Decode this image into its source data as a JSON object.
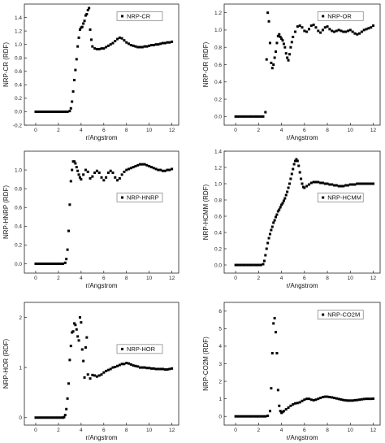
{
  "chart_data": [
    {
      "type": "scatter",
      "xlabel": "r/Angstrom",
      "ylabel": "NRP-CR (RDF)",
      "legend": "NRP-CR",
      "legend_position": "top-right",
      "xlim": [
        -1,
        12.6
      ],
      "ylim": [
        -0.2,
        1.6
      ],
      "xticks": [
        "0",
        "2",
        "4",
        "6",
        "8",
        "10",
        "12"
      ],
      "yticks": [
        "-0.2",
        "0.0",
        "0.2",
        "0.4",
        "0.6",
        "0.8",
        "1.0",
        "1.2",
        "1.4"
      ],
      "x": [
        0,
        0.2,
        0.4,
        0.6,
        0.8,
        1.0,
        1.2,
        1.4,
        1.6,
        1.8,
        2.0,
        2.2,
        2.4,
        2.6,
        2.8,
        3.0,
        3.1,
        3.2,
        3.3,
        3.4,
        3.5,
        3.6,
        3.7,
        3.8,
        3.9,
        4.0,
        4.1,
        4.2,
        4.3,
        4.4,
        4.5,
        4.6,
        4.7,
        4.8,
        4.9,
        5.0,
        5.2,
        5.4,
        5.6,
        5.8,
        6.0,
        6.2,
        6.4,
        6.6,
        6.8,
        7.0,
        7.2,
        7.4,
        7.6,
        7.8,
        8.0,
        8.2,
        8.4,
        8.6,
        8.8,
        9.0,
        9.2,
        9.4,
        9.6,
        9.8,
        10.0,
        10.2,
        10.4,
        10.6,
        10.8,
        11.0,
        11.2,
        11.4,
        11.6,
        11.8,
        12.0
      ],
      "y": [
        0,
        0,
        0,
        0,
        0,
        0,
        0,
        0,
        0,
        0,
        0,
        0,
        0,
        0,
        0,
        0.01,
        0.05,
        0.15,
        0.3,
        0.47,
        0.62,
        0.78,
        0.97,
        1.1,
        1.22,
        1.25,
        1.26,
        1.31,
        1.35,
        1.43,
        1.45,
        1.51,
        1.54,
        1.22,
        1.07,
        0.97,
        0.94,
        0.93,
        0.93,
        0.94,
        0.94,
        0.96,
        0.98,
        1.0,
        1.02,
        1.05,
        1.08,
        1.1,
        1.09,
        1.06,
        1.03,
        1.01,
        0.99,
        0.98,
        0.97,
        0.96,
        0.96,
        0.96,
        0.97,
        0.97,
        0.98,
        0.99,
        0.99,
        1.0,
        1.0,
        1.01,
        1.02,
        1.02,
        1.03,
        1.03,
        1.04
      ]
    },
    {
      "type": "scatter",
      "xlabel": "r/Angstrom",
      "ylabel": "NRP-OR (RDF)",
      "legend": "NRP-OR",
      "legend_position": "top-right",
      "xlim": [
        -1,
        12.6
      ],
      "ylim": [
        -0.1,
        1.3
      ],
      "xticks": [
        "0",
        "2",
        "4",
        "6",
        "8",
        "10",
        "12"
      ],
      "yticks": [
        "0.0",
        "0.2",
        "0.4",
        "0.6",
        "0.8",
        "1.0",
        "1.2"
      ],
      "x": [
        0,
        0.2,
        0.4,
        0.6,
        0.8,
        1.0,
        1.2,
        1.4,
        1.6,
        1.8,
        2.0,
        2.2,
        2.4,
        2.6,
        2.7,
        2.8,
        2.9,
        3.0,
        3.1,
        3.2,
        3.3,
        3.4,
        3.5,
        3.6,
        3.7,
        3.8,
        3.9,
        4.0,
        4.1,
        4.2,
        4.3,
        4.4,
        4.5,
        4.6,
        4.7,
        4.8,
        4.9,
        5.0,
        5.2,
        5.4,
        5.6,
        5.8,
        6.0,
        6.2,
        6.4,
        6.6,
        6.8,
        7.0,
        7.2,
        7.4,
        7.6,
        7.8,
        8.0,
        8.2,
        8.4,
        8.6,
        8.8,
        9.0,
        9.2,
        9.4,
        9.6,
        9.8,
        10.0,
        10.2,
        10.4,
        10.6,
        10.8,
        11.0,
        11.2,
        11.4,
        11.6,
        11.8,
        12.0
      ],
      "y": [
        0,
        0,
        0,
        0,
        0,
        0,
        0,
        0,
        0,
        0,
        0,
        0,
        0,
        0.05,
        0.66,
        1.2,
        1.1,
        0.85,
        0.62,
        0.56,
        0.6,
        0.68,
        0.75,
        0.85,
        0.93,
        0.95,
        0.92,
        0.9,
        0.88,
        0.84,
        0.8,
        0.73,
        0.68,
        0.65,
        0.72,
        0.8,
        0.86,
        0.92,
        0.98,
        1.04,
        1.05,
        1.03,
        0.99,
        0.98,
        1.01,
        1.05,
        1.06,
        1.03,
        0.99,
        0.97,
        1.0,
        1.03,
        1.04,
        1.01,
        0.99,
        0.98,
        0.99,
        1.0,
        0.99,
        0.98,
        0.98,
        0.99,
        1.0,
        0.98,
        0.96,
        0.95,
        0.96,
        0.98,
        1.0,
        1.01,
        1.02,
        1.03,
        1.05
      ]
    },
    {
      "type": "scatter",
      "xlabel": "r/Angstrom",
      "ylabel": "NRP-HNRP (RDF)",
      "legend": "NRP-HNRP",
      "legend_position": "center-right",
      "xlim": [
        -1,
        12.6
      ],
      "ylim": [
        -0.1,
        1.2
      ],
      "xticks": [
        "0",
        "2",
        "4",
        "6",
        "8",
        "10",
        "12"
      ],
      "yticks": [
        "0.0",
        "0.2",
        "0.4",
        "0.6",
        "0.8",
        "1.0"
      ],
      "x": [
        0,
        0.2,
        0.4,
        0.6,
        0.8,
        1.0,
        1.2,
        1.4,
        1.6,
        1.8,
        2.0,
        2.2,
        2.4,
        2.6,
        2.7,
        2.8,
        2.9,
        3.0,
        3.1,
        3.2,
        3.3,
        3.4,
        3.5,
        3.6,
        3.7,
        3.8,
        3.9,
        4.0,
        4.2,
        4.4,
        4.6,
        4.8,
        5.0,
        5.2,
        5.4,
        5.6,
        5.8,
        6.0,
        6.2,
        6.4,
        6.6,
        6.8,
        7.0,
        7.2,
        7.4,
        7.6,
        7.8,
        8.0,
        8.2,
        8.4,
        8.6,
        8.8,
        9.0,
        9.2,
        9.4,
        9.6,
        9.8,
        10.0,
        10.2,
        10.4,
        10.6,
        10.8,
        11.0,
        11.2,
        11.4,
        11.6,
        11.8,
        12.0
      ],
      "y": [
        0,
        0,
        0,
        0,
        0,
        0,
        0,
        0,
        0,
        0,
        0,
        0,
        0,
        0.01,
        0.05,
        0.15,
        0.35,
        0.63,
        0.88,
        1.0,
        1.09,
        1.09,
        1.07,
        1.03,
        0.99,
        0.95,
        0.92,
        0.9,
        0.95,
        1.0,
        0.98,
        0.91,
        0.93,
        0.97,
        0.99,
        0.97,
        0.92,
        0.89,
        0.92,
        0.97,
        0.99,
        0.97,
        0.92,
        0.89,
        0.91,
        0.95,
        0.98,
        1.0,
        1.01,
        1.02,
        1.03,
        1.04,
        1.05,
        1.06,
        1.06,
        1.06,
        1.05,
        1.04,
        1.03,
        1.02,
        1.01,
        1.0,
        1.0,
        0.99,
        0.99,
        1.0,
        1.0,
        1.01
      ]
    },
    {
      "type": "scatter",
      "xlabel": "r/Angstrom",
      "ylabel": "NRP-HCMM (RDF)",
      "legend": "NRP-HCMM",
      "legend_position": "center-right",
      "xlim": [
        -1,
        12.6
      ],
      "ylim": [
        -0.1,
        1.4
      ],
      "xticks": [
        "0",
        "2",
        "4",
        "6",
        "8",
        "10",
        "12"
      ],
      "yticks": [
        "0.0",
        "0.2",
        "0.4",
        "0.6",
        "0.8",
        "1.0",
        "1.2",
        "1.4"
      ],
      "x": [
        0,
        0.2,
        0.4,
        0.6,
        0.8,
        1.0,
        1.2,
        1.4,
        1.6,
        1.8,
        2.0,
        2.2,
        2.4,
        2.5,
        2.6,
        2.7,
        2.8,
        2.9,
        3.0,
        3.1,
        3.2,
        3.3,
        3.4,
        3.5,
        3.6,
        3.7,
        3.8,
        3.9,
        4.0,
        4.1,
        4.2,
        4.3,
        4.4,
        4.5,
        4.6,
        4.7,
        4.8,
        4.9,
        5.0,
        5.1,
        5.2,
        5.3,
        5.4,
        5.5,
        5.6,
        5.7,
        5.8,
        5.9,
        6.0,
        6.2,
        6.4,
        6.6,
        6.8,
        7.0,
        7.2,
        7.4,
        7.6,
        7.8,
        8.0,
        8.2,
        8.4,
        8.6,
        8.8,
        9.0,
        9.2,
        9.4,
        9.6,
        9.8,
        10.0,
        10.2,
        10.4,
        10.6,
        10.8,
        11.0,
        11.2,
        11.4,
        11.6,
        11.8,
        12.0
      ],
      "y": [
        0,
        0,
        0,
        0,
        0,
        0,
        0,
        0,
        0,
        0,
        0,
        0,
        0.01,
        0.05,
        0.12,
        0.2,
        0.27,
        0.33,
        0.38,
        0.43,
        0.47,
        0.52,
        0.55,
        0.59,
        0.62,
        0.66,
        0.68,
        0.71,
        0.74,
        0.76,
        0.79,
        0.82,
        0.86,
        0.9,
        0.95,
        1.0,
        1.06,
        1.12,
        1.18,
        1.24,
        1.28,
        1.3,
        1.28,
        1.22,
        1.14,
        1.06,
        1.0,
        0.96,
        0.95,
        0.97,
        0.99,
        1.01,
        1.02,
        1.02,
        1.02,
        1.01,
        1.01,
        1.0,
        1.0,
        0.99,
        0.99,
        0.98,
        0.98,
        0.97,
        0.97,
        0.97,
        0.98,
        0.98,
        0.99,
        0.99,
        0.99,
        1.0,
        1.0,
        1.0,
        1.0,
        1.0,
        1.0,
        1.0,
        1.0
      ]
    },
    {
      "type": "scatter",
      "xlabel": "r/Angstrom",
      "ylabel": "NRP-HOR (RDF)",
      "legend": "NRP-HOR",
      "legend_position": "center-right",
      "xlim": [
        -1,
        12.6
      ],
      "ylim": [
        -0.15,
        2.3
      ],
      "xticks": [
        "0",
        "2",
        "4",
        "6",
        "8",
        "10",
        "12"
      ],
      "yticks": [
        "0",
        "1",
        "2"
      ],
      "x": [
        0,
        0.2,
        0.4,
        0.6,
        0.8,
        1.0,
        1.2,
        1.4,
        1.6,
        1.8,
        2.0,
        2.2,
        2.4,
        2.5,
        2.6,
        2.7,
        2.8,
        2.9,
        3.0,
        3.1,
        3.2,
        3.3,
        3.4,
        3.5,
        3.6,
        3.7,
        3.8,
        3.9,
        4.0,
        4.1,
        4.2,
        4.3,
        4.4,
        4.5,
        4.6,
        4.8,
        5.0,
        5.2,
        5.4,
        5.6,
        5.8,
        6.0,
        6.2,
        6.4,
        6.6,
        6.8,
        7.0,
        7.2,
        7.4,
        7.6,
        7.8,
        8.0,
        8.2,
        8.4,
        8.6,
        8.8,
        9.0,
        9.2,
        9.4,
        9.6,
        9.8,
        10.0,
        10.2,
        10.4,
        10.6,
        10.8,
        11.0,
        11.2,
        11.4,
        11.6,
        11.8,
        12.0
      ],
      "y": [
        0,
        0,
        0,
        0,
        0,
        0,
        0,
        0,
        0,
        0,
        0,
        0,
        0,
        0.01,
        0.05,
        0.17,
        0.38,
        0.68,
        1.15,
        1.43,
        1.7,
        1.72,
        1.88,
        1.85,
        1.76,
        1.62,
        1.54,
        2.0,
        1.9,
        1.36,
        1.13,
        0.8,
        1.4,
        1.6,
        0.86,
        0.78,
        0.85,
        0.84,
        0.82,
        0.84,
        0.86,
        0.9,
        0.93,
        0.95,
        0.97,
        1.0,
        1.01,
        1.03,
        1.05,
        1.07,
        1.07,
        1.09,
        1.08,
        1.06,
        1.04,
        1.03,
        1.02,
        1.0,
        1.0,
        1.0,
        0.99,
        0.99,
        0.98,
        0.98,
        0.97,
        0.97,
        0.97,
        0.97,
        0.96,
        0.96,
        0.97,
        0.98
      ]
    },
    {
      "type": "scatter",
      "xlabel": "r/Angstrom",
      "ylabel": "NRP-CO2M (RDF)",
      "legend": "NRP-CO2M",
      "legend_position": "top-right",
      "xlim": [
        -1,
        12.6
      ],
      "ylim": [
        -0.5,
        6.5
      ],
      "xticks": [
        "0",
        "2",
        "4",
        "6",
        "8",
        "10",
        "12"
      ],
      "yticks": [
        "0",
        "1",
        "2",
        "3",
        "4",
        "5",
        "6"
      ],
      "x": [
        0,
        0.2,
        0.4,
        0.6,
        0.8,
        1.0,
        1.2,
        1.4,
        1.6,
        1.8,
        2.0,
        2.2,
        2.4,
        2.6,
        2.8,
        3.0,
        3.1,
        3.2,
        3.3,
        3.4,
        3.5,
        3.6,
        3.7,
        3.8,
        3.9,
        4.0,
        4.1,
        4.2,
        4.4,
        4.6,
        4.8,
        5.0,
        5.2,
        5.4,
        5.6,
        5.8,
        6.0,
        6.2,
        6.4,
        6.6,
        6.8,
        7.0,
        7.2,
        7.4,
        7.6,
        7.8,
        8.0,
        8.2,
        8.4,
        8.6,
        8.8,
        9.0,
        9.2,
        9.4,
        9.6,
        9.8,
        10.0,
        10.2,
        10.4,
        10.6,
        10.8,
        11.0,
        11.2,
        11.4,
        11.6,
        11.8,
        12.0
      ],
      "y": [
        0,
        0,
        0,
        0,
        0,
        0,
        0,
        0,
        0,
        0,
        0,
        0,
        0,
        0,
        0.03,
        0.3,
        1.6,
        3.6,
        5.3,
        5.6,
        4.8,
        3.6,
        1.5,
        0.6,
        0.3,
        0.2,
        0.25,
        0.3,
        0.4,
        0.5,
        0.6,
        0.68,
        0.74,
        0.76,
        0.8,
        0.88,
        0.95,
        1.0,
        1.0,
        0.95,
        0.92,
        0.95,
        1.0,
        1.05,
        1.1,
        1.12,
        1.12,
        1.1,
        1.08,
        1.05,
        1.02,
        0.99,
        0.96,
        0.93,
        0.91,
        0.9,
        0.9,
        0.9,
        0.92,
        0.93,
        0.95,
        0.97,
        0.99,
        1.0,
        1.0,
        1.0,
        1.01
      ]
    }
  ]
}
